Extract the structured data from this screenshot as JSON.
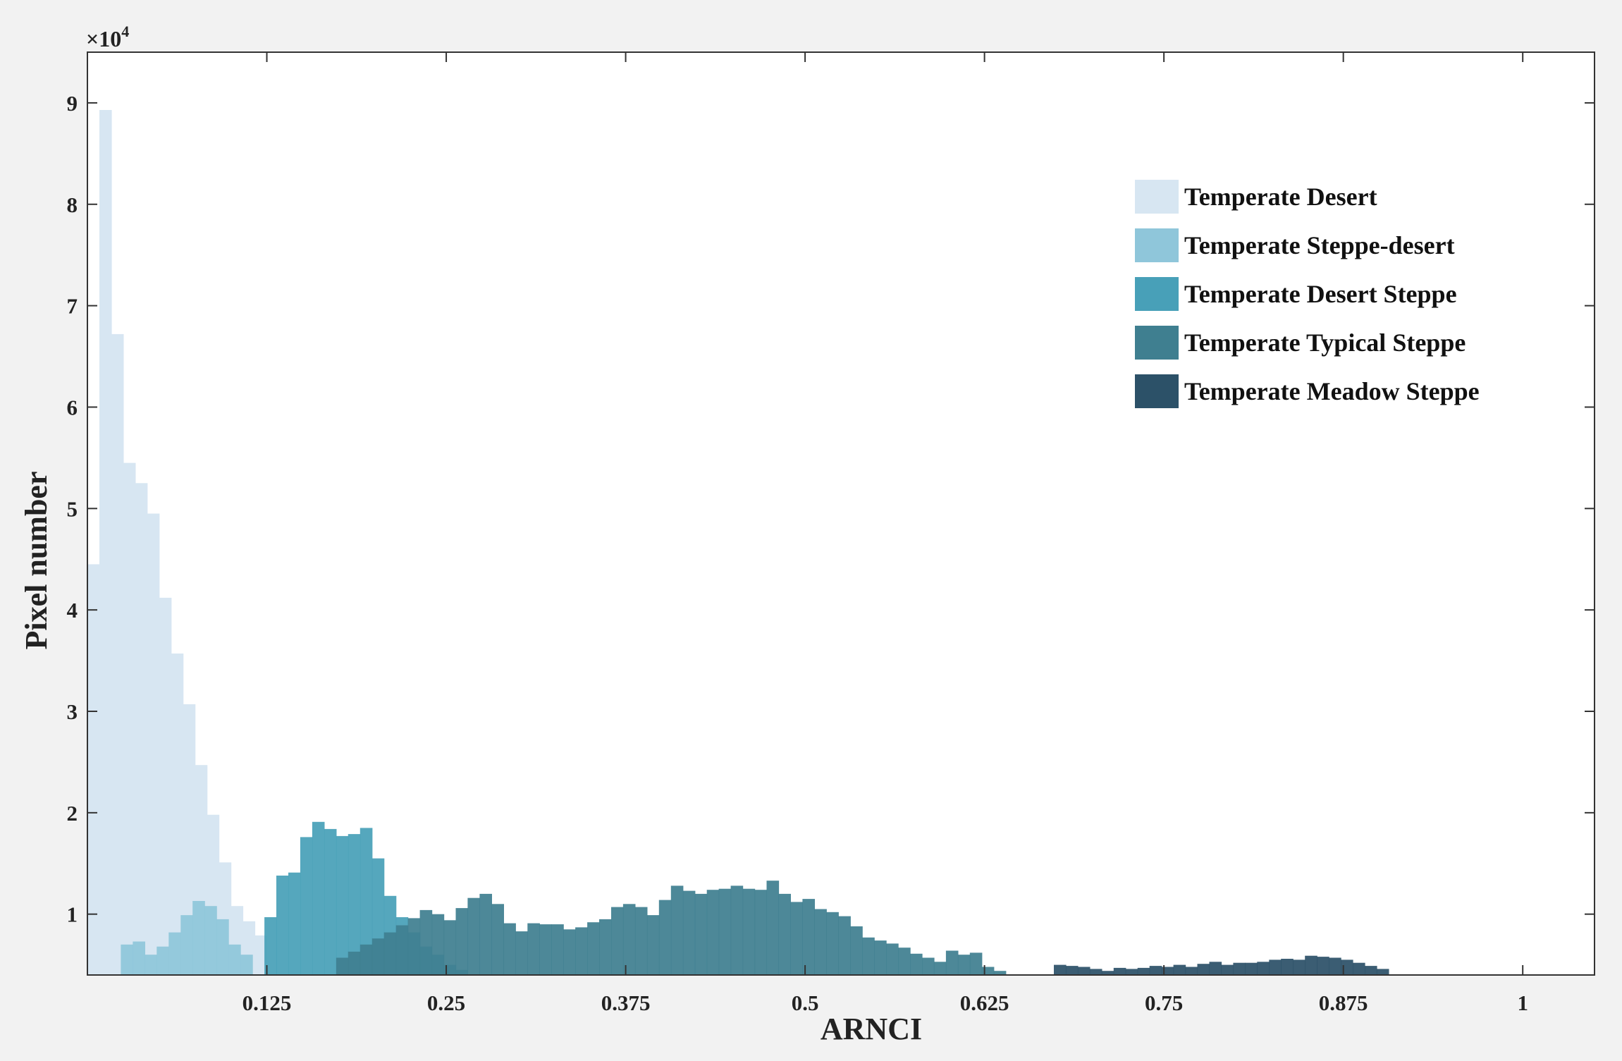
{
  "chart_data": {
    "type": "bar",
    "title": "",
    "xlabel": "ARNCI",
    "ylabel": "Pixel number",
    "y_multiplier_label": "×10",
    "y_multiplier_exponent": "4",
    "xlim": [
      0,
      1.05
    ],
    "ylim": [
      0.4,
      9.5
    ],
    "xticks": [
      0.125,
      0.25,
      0.375,
      0.5,
      0.625,
      0.75,
      0.875,
      1
    ],
    "xtick_labels": [
      "0.125",
      "0.25",
      "0.375",
      "0.5",
      "0.625",
      "0.75",
      "0.875",
      "1"
    ],
    "yticks": [
      1,
      2,
      3,
      4,
      5,
      6,
      7,
      8,
      9
    ],
    "ytick_labels": [
      "1",
      "2",
      "3",
      "4",
      "5",
      "6",
      "7",
      "8",
      "9"
    ],
    "grid": false,
    "legend_position": "top-right",
    "bin_width": 0.00833,
    "series": [
      {
        "name": "Temperate Desert",
        "color": "#d7e6f2",
        "x_start": 0.0,
        "values": [
          4.45,
          8.93,
          6.72,
          5.45,
          5.25,
          4.95,
          4.12,
          3.57,
          3.07,
          2.47,
          1.98,
          1.51,
          1.08,
          0.93,
          0.79
        ]
      },
      {
        "name": "Temperate Steppe-desert",
        "color": "#8fc6da",
        "x_start": 0.0233,
        "values": [
          0.7,
          0.73,
          0.6,
          0.68,
          0.82,
          0.99,
          1.13,
          1.08,
          0.95,
          0.7,
          0.6
        ]
      },
      {
        "name": "Temperate Desert Steppe",
        "color": "#48a0b8",
        "x_start": 0.1233,
        "values": [
          0.97,
          1.38,
          1.41,
          1.76,
          1.91,
          1.84,
          1.77,
          1.79,
          1.85,
          1.55,
          1.18,
          0.97,
          0.82,
          0.68,
          0.6,
          0.5,
          0.45
        ]
      },
      {
        "name": "Temperate Typical Steppe",
        "color": "#3f7f90",
        "x_start": 0.1733,
        "values": [
          0.57,
          0.63,
          0.7,
          0.76,
          0.82,
          0.89,
          0.96,
          1.04,
          1.0,
          0.94,
          1.06,
          1.16,
          1.2,
          1.1,
          0.91,
          0.83,
          0.91,
          0.9,
          0.9,
          0.85,
          0.87,
          0.92,
          0.95,
          1.07,
          1.1,
          1.07,
          0.99,
          1.14,
          1.28,
          1.23,
          1.2,
          1.24,
          1.25,
          1.28,
          1.25,
          1.24,
          1.33,
          1.2,
          1.12,
          1.15,
          1.05,
          1.02,
          0.98,
          0.88,
          0.77,
          0.74,
          0.71,
          0.67,
          0.61,
          0.57,
          0.53,
          0.64,
          0.6,
          0.62,
          0.48,
          0.44
        ]
      },
      {
        "name": "Temperate Meadow Steppe",
        "color": "#2c5168",
        "x_start": 0.6733,
        "values": [
          0.5,
          0.49,
          0.48,
          0.46,
          0.44,
          0.47,
          0.46,
          0.47,
          0.49,
          0.48,
          0.5,
          0.48,
          0.51,
          0.53,
          0.5,
          0.52,
          0.52,
          0.53,
          0.55,
          0.56,
          0.55,
          0.59,
          0.58,
          0.57,
          0.55,
          0.52,
          0.49,
          0.46
        ]
      }
    ]
  }
}
